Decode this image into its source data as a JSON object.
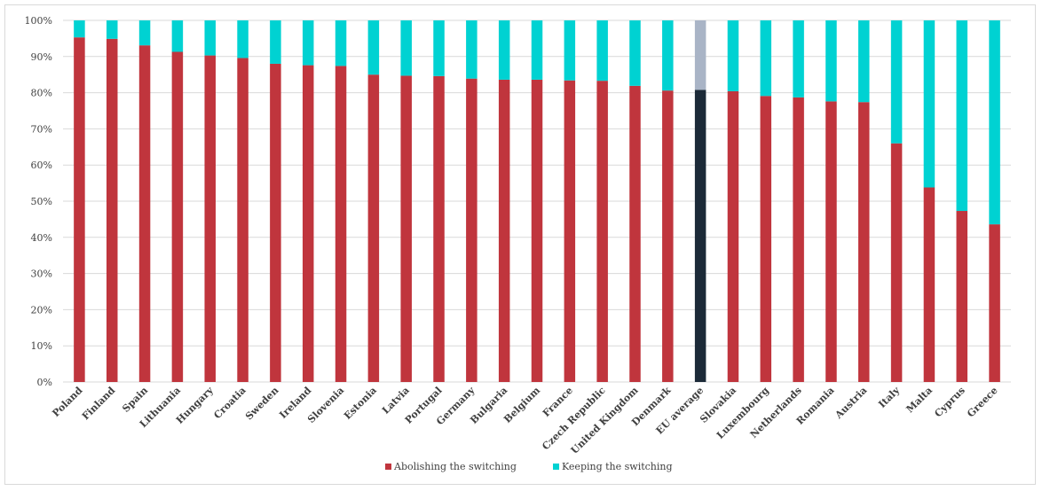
{
  "chart_data": {
    "type": "bar",
    "stacked": true,
    "percent": true,
    "categories": [
      "Poland",
      "Finland",
      "Spain",
      "Lithuania",
      "Hungary",
      "Croatia",
      "Sweden",
      "Ireland",
      "Slovenia",
      "Estonia",
      "Latvia",
      "Portugal",
      "Germany",
      "Bulgaria",
      "Belgium",
      "France",
      "Czech Republic",
      "United Kingdom",
      "Denmark",
      "EU average",
      "Slovakia",
      "Luxembourg",
      "Netherlands",
      "Romania",
      "Austria",
      "Italy",
      "Malta",
      "Cyprus",
      "Greece"
    ],
    "series": [
      {
        "name": "Abolishing the switching",
        "color": "#c0353d",
        "values": [
          95.3,
          94.9,
          93.1,
          91.3,
          90.3,
          89.6,
          88.0,
          87.6,
          87.4,
          85.0,
          84.7,
          84.6,
          83.9,
          83.6,
          83.6,
          83.4,
          83.3,
          81.9,
          80.6,
          80.8,
          80.4,
          79.1,
          78.7,
          77.6,
          77.4,
          66.0,
          53.8,
          47.3,
          43.6
        ]
      },
      {
        "name": "Keeping the switching",
        "color": "#00d2d2",
        "values": [
          4.7,
          5.1,
          6.9,
          8.7,
          9.7,
          10.4,
          12.0,
          12.4,
          12.6,
          15.0,
          15.3,
          15.4,
          16.1,
          16.4,
          16.4,
          16.6,
          16.7,
          18.1,
          19.4,
          19.2,
          19.6,
          20.9,
          21.3,
          22.4,
          22.6,
          34.0,
          46.2,
          52.7,
          56.4
        ]
      }
    ],
    "highlight": {
      "category": "EU average",
      "colors": [
        "#1c2a38",
        "#a9b4c6"
      ]
    },
    "ylim": [
      0,
      100
    ],
    "yticks": [
      "0%",
      "10%",
      "20%",
      "30%",
      "40%",
      "50%",
      "60%",
      "70%",
      "80%",
      "90%",
      "100%"
    ],
    "grid": true,
    "legend_position": "bottom",
    "title": "",
    "xlabel": "",
    "ylabel": ""
  }
}
